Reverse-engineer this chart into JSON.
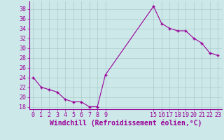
{
  "x": [
    0,
    1,
    2,
    3,
    4,
    5,
    6,
    7,
    8,
    9,
    15,
    16,
    17,
    18,
    19,
    20,
    21,
    22,
    23
  ],
  "y": [
    24,
    22,
    21.5,
    21,
    19.5,
    19,
    19,
    18,
    18,
    24.5,
    38.5,
    35,
    34,
    33.5,
    33.5,
    32,
    31,
    29,
    28.5
  ],
  "line_color": "#990099",
  "marker": "+",
  "bg_color": "#cce8e8",
  "grid_color": "#aacccc",
  "xlabel": "Windchill (Refroidissement éolien,°C)",
  "xlabel_color": "#990099",
  "xlabel_fontsize": 7,
  "yticks": [
    18,
    20,
    22,
    24,
    26,
    28,
    30,
    32,
    34,
    36,
    38
  ],
  "xticks": [
    0,
    1,
    2,
    3,
    4,
    5,
    6,
    7,
    8,
    9,
    15,
    16,
    17,
    18,
    19,
    20,
    21,
    22,
    23
  ],
  "ylim": [
    17.5,
    39.5
  ],
  "xlim": [
    -0.5,
    23.5
  ],
  "tick_color": "#990099",
  "tick_fontsize": 6,
  "figsize": [
    3.2,
    2.0
  ],
  "dpi": 100
}
